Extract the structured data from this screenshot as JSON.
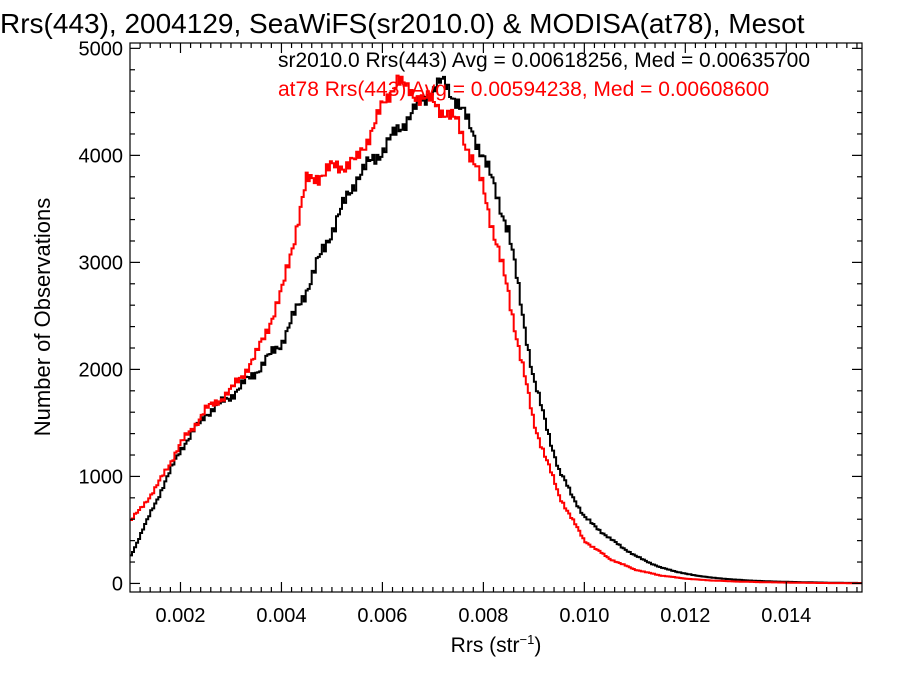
{
  "chart_data": {
    "type": "line",
    "title": "Rrs(443), 2004129, SeaWiFS(sr2010.0) & MODISA(at78), Mesot",
    "xlabel_main": "Rrs (str",
    "xlabel_sup": "−1",
    "xlabel_close": ")",
    "ylabel": "Number of Observations",
    "xlim": [
      0.001,
      0.0155
    ],
    "ylim": [
      -80,
      5050
    ],
    "xticks": [
      0.002,
      0.004,
      0.006,
      0.008,
      0.01,
      0.012,
      0.014
    ],
    "xtick_labels": [
      "0.002",
      "0.004",
      "0.006",
      "0.008",
      "0.010",
      "0.012",
      "0.014"
    ],
    "yticks": [
      0,
      1000,
      2000,
      3000,
      4000,
      5000
    ],
    "ytick_labels": [
      "0",
      "1000",
      "2000",
      "3000",
      "4000",
      "5000"
    ],
    "grid": false,
    "legend_position": "top-right",
    "series": [
      {
        "name": "sr2010.0 Rrs(443) Avg = 0.00618256, Med = 0.00635700",
        "color": "#000000",
        "x": [
          0.001,
          0.0015,
          0.002,
          0.0025,
          0.003,
          0.0035,
          0.004,
          0.0045,
          0.005,
          0.0055,
          0.006,
          0.0065,
          0.007,
          0.0072,
          0.0075,
          0.008,
          0.0085,
          0.009,
          0.0095,
          0.01,
          0.0105,
          0.011,
          0.0115,
          0.012,
          0.0125,
          0.013,
          0.0135,
          0.014,
          0.0145,
          0.015,
          0.0155
        ],
        "values": [
          240,
          750,
          1250,
          1580,
          1750,
          1980,
          2250,
          2750,
          3300,
          3800,
          4050,
          4350,
          4620,
          4680,
          4500,
          4000,
          3300,
          1900,
          1050,
          620,
          420,
          260,
          150,
          90,
          55,
          35,
          22,
          15,
          10,
          6,
          4
        ]
      },
      {
        "name": "at78 Rrs(443) Avg = 0.00594238, Med = 0.00608600",
        "color": "#ff0000",
        "x": [
          0.001,
          0.0015,
          0.002,
          0.0025,
          0.003,
          0.0035,
          0.004,
          0.0045,
          0.005,
          0.0055,
          0.006,
          0.0063,
          0.0065,
          0.007,
          0.0075,
          0.008,
          0.0085,
          0.009,
          0.0095,
          0.01,
          0.0105,
          0.011,
          0.0115,
          0.012,
          0.0125,
          0.013,
          0.0135,
          0.014,
          0.0145,
          0.015,
          0.0155
        ],
        "values": [
          570,
          880,
          1300,
          1620,
          1800,
          2130,
          2700,
          3750,
          3880,
          3950,
          4450,
          4720,
          4600,
          4500,
          4300,
          3700,
          2700,
          1500,
          820,
          400,
          230,
          130,
          75,
          45,
          28,
          18,
          12,
          8,
          5,
          3,
          2
        ]
      }
    ]
  }
}
